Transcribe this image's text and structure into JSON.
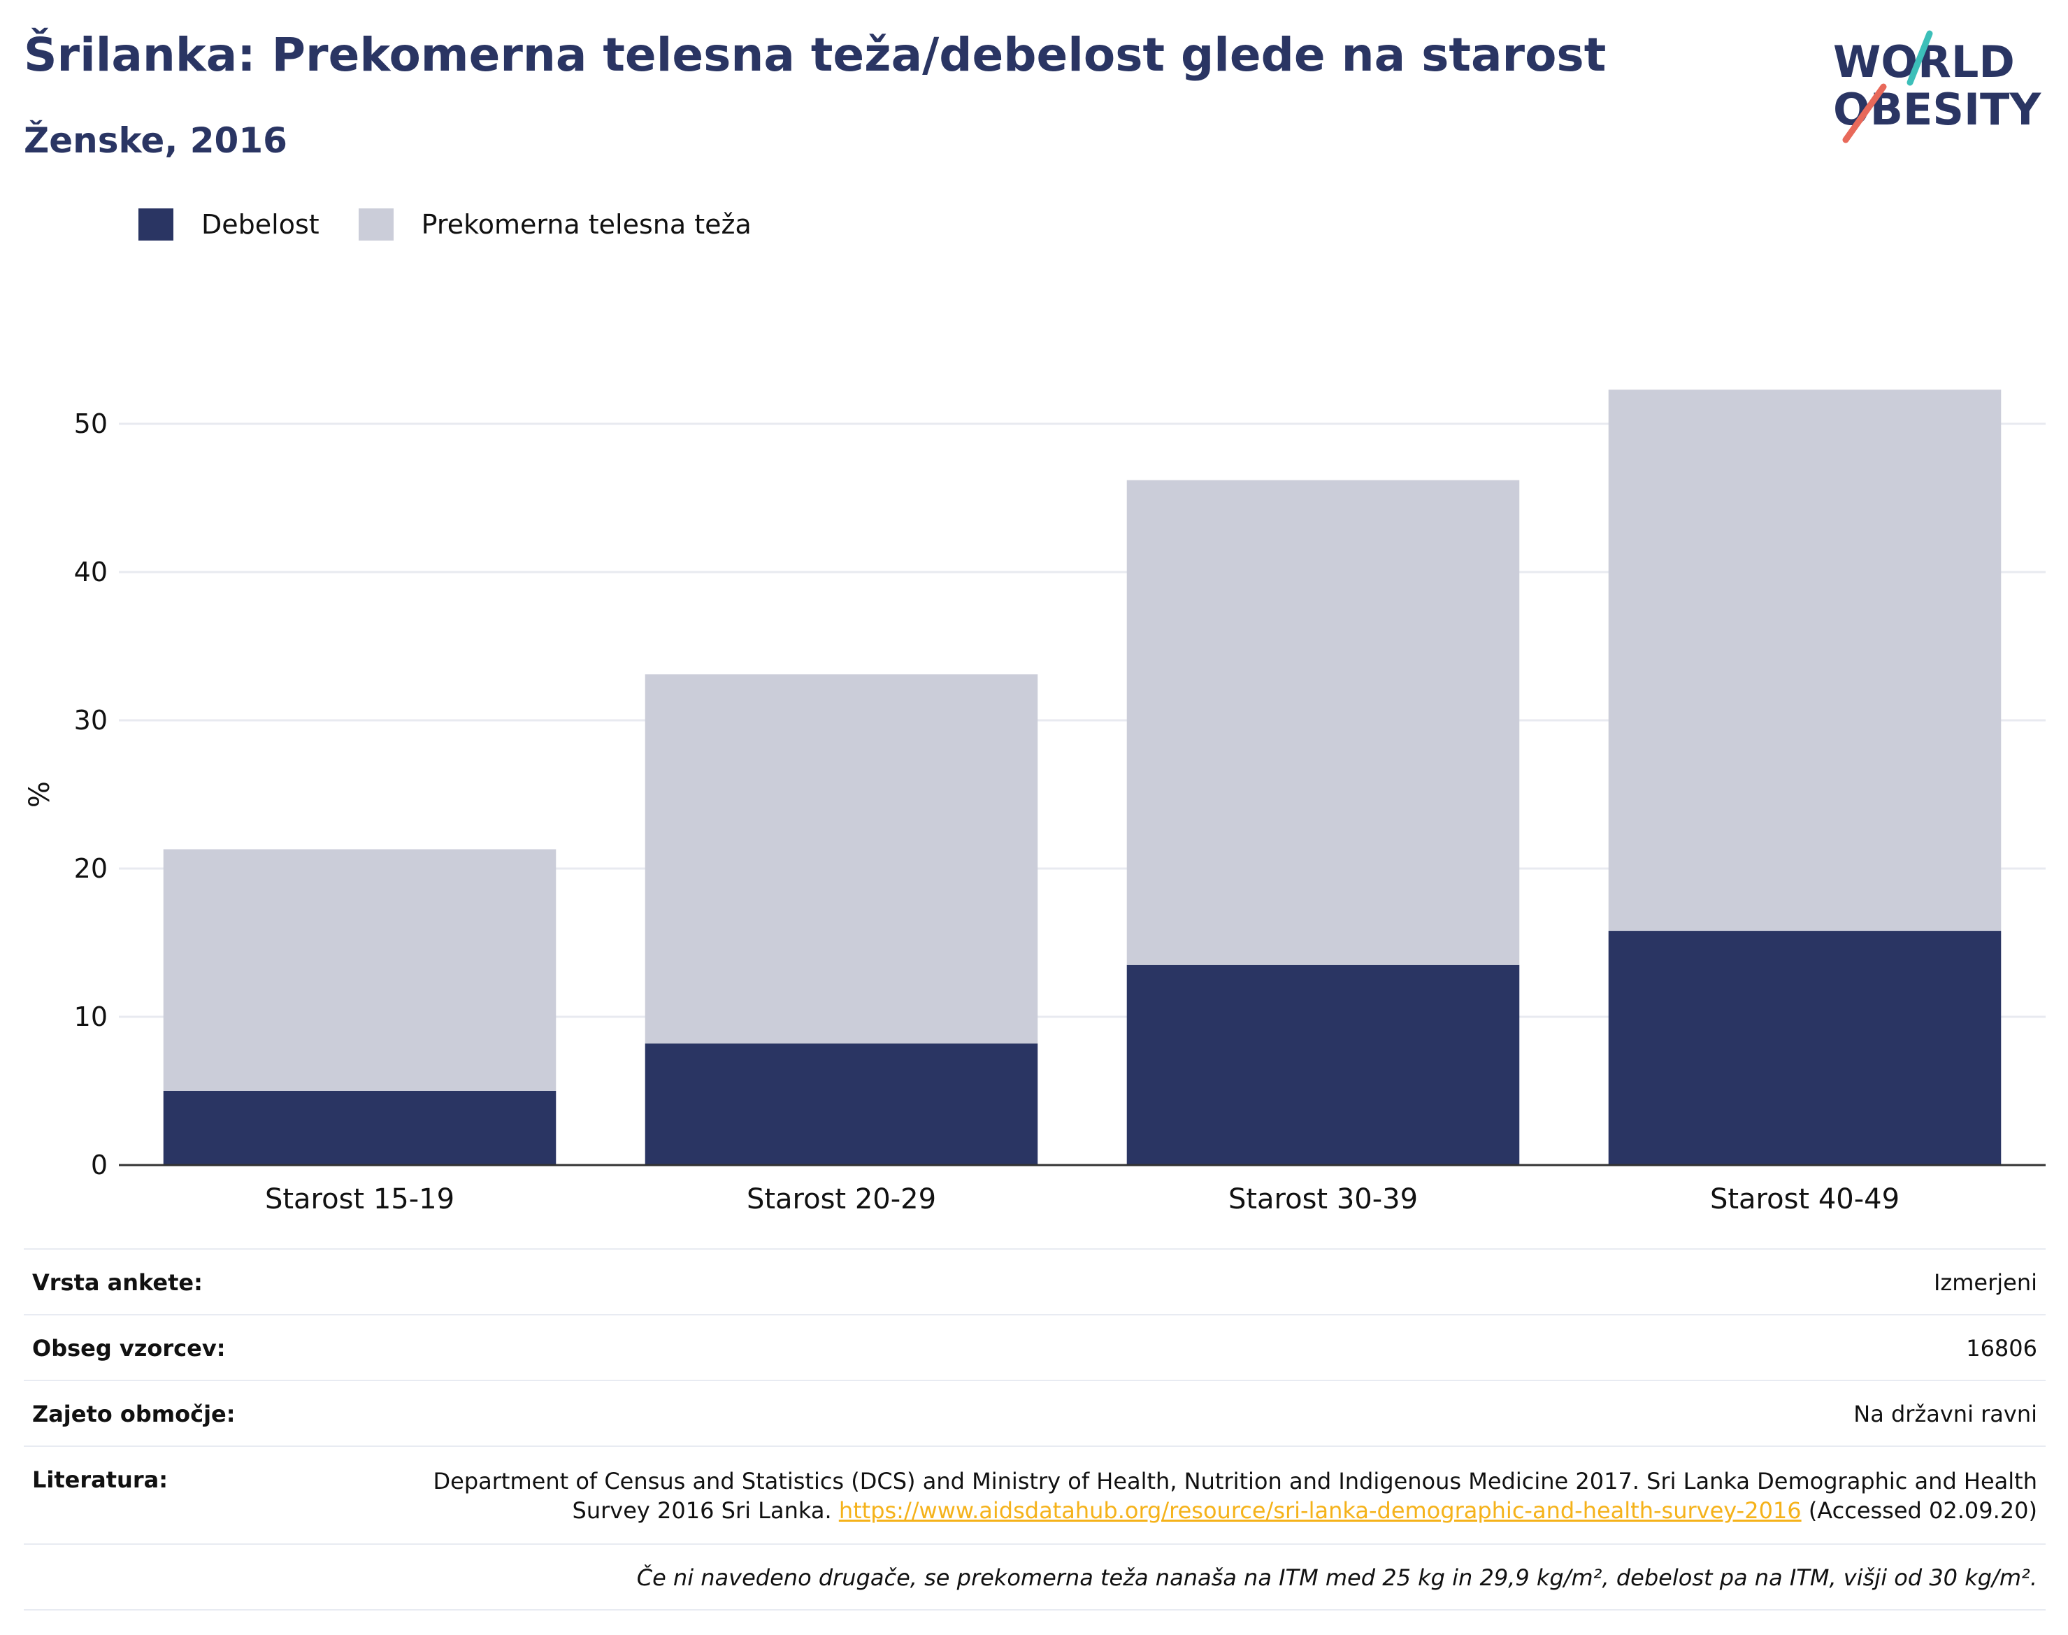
{
  "header": {
    "title": "Šrilanka: Prekomerna telesna teža/debelost glede na starost",
    "subtitle": "Ženske, 2016"
  },
  "logo": {
    "line1": "WORLD",
    "line2": "OBESITY",
    "accent_teal": "#3cbfb9",
    "accent_red": "#e8695a"
  },
  "colors": {
    "obesity": "#2a3563",
    "overweight": "#cbcdd9",
    "grid": "#e8eaf0",
    "axis": "#333333"
  },
  "legend": [
    {
      "label": "Debelost",
      "color": "#2a3563"
    },
    {
      "label": "Prekomerna telesna teža",
      "color": "#cbcdd9"
    }
  ],
  "chart_data": {
    "type": "bar",
    "stacked": true,
    "categories": [
      "Starost 15-19",
      "Starost 20-29",
      "Starost 30-39",
      "Starost 40-49"
    ],
    "series": [
      {
        "name": "Debelost",
        "values": [
          5.0,
          8.2,
          13.5,
          15.8
        ]
      },
      {
        "name": "Prekomerna telesna teža",
        "values": [
          16.3,
          24.9,
          32.7,
          36.5
        ]
      }
    ],
    "ylabel": "%",
    "ylim": [
      0,
      55
    ],
    "yticks": [
      0,
      10,
      20,
      30,
      40,
      50
    ],
    "grid": true,
    "legend_position": "top-left"
  },
  "info": {
    "survey_type": {
      "label": "Vrsta ankete:",
      "value": "Izmerjeni"
    },
    "sample_size": {
      "label": "Obseg vzorcev:",
      "value": "16806"
    },
    "coverage": {
      "label": "Zajeto območje:",
      "value": "Na državni ravni"
    },
    "reference": {
      "label": "Literatura:",
      "text_before": "Department of Census and Statistics (DCS) and Ministry of Health, Nutrition and Indigenous Medicine 2017. Sri Lanka Demographic and Health Survey 2016 Sri Lanka. ",
      "link": "https://www.aidsdatahub.org/resource/sri-lanka-demographic-and-health-survey-2016",
      "text_after": " (Accessed 02.09.20)"
    },
    "note": "Če ni navedeno drugače, se prekomerna teža nanaša na ITM med 25 kg in 29,9 kg/m², debelost pa na ITM, višji od 30 kg/m²."
  }
}
